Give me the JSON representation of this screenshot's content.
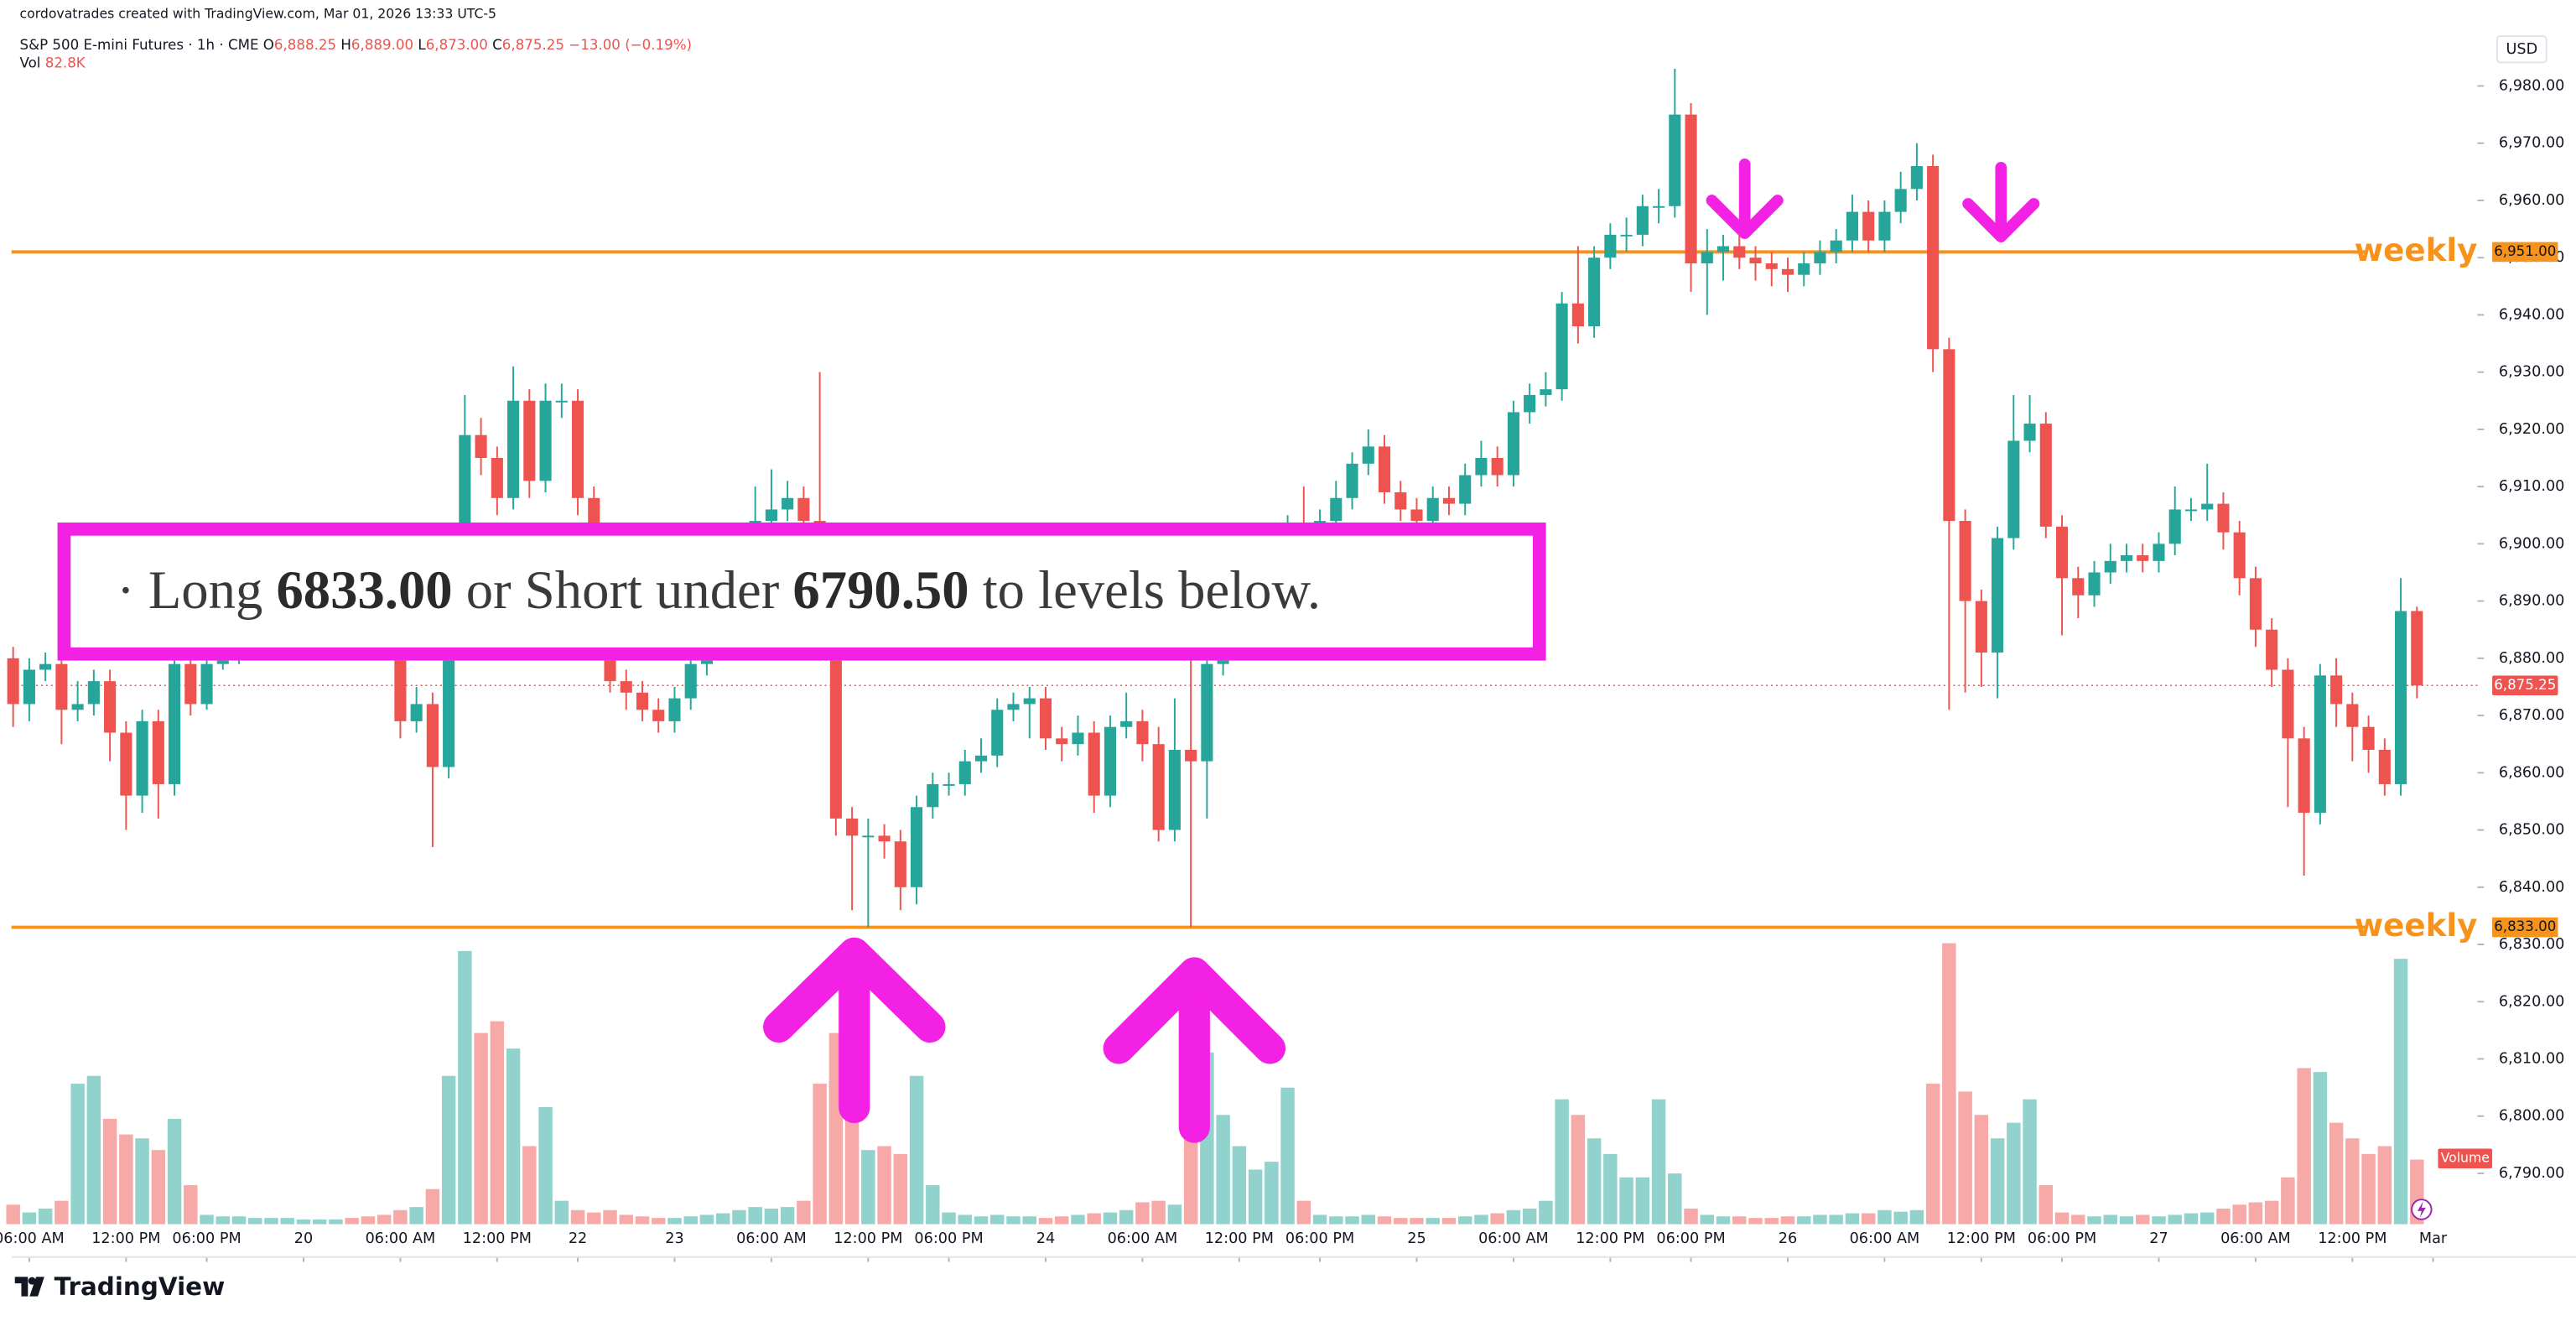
{
  "header": {
    "credit": "cordovatrades created with TradingView.com, Mar 01, 2026 13:33 UTC-5",
    "symbol": "S&P 500 E-mini Futures · 1h · CME",
    "ohlc": [
      {
        "key": "O",
        "value": "6,888.25"
      },
      {
        "key": "H",
        "value": "6,889.00"
      },
      {
        "key": "L",
        "value": "6,873.00"
      },
      {
        "key": "C",
        "value": "6,875.25"
      }
    ],
    "change": "−13.00 (−0.19%)",
    "vol_key": "Vol",
    "vol_value": "82.8K",
    "currency": "USD"
  },
  "annotation": {
    "bullet": "·",
    "long": "Long",
    "long_level": "6833.00",
    "middle": "or Short under",
    "short_level": "6790.50",
    "tail": "to levels below."
  },
  "footer": {
    "brand": "TradingView"
  },
  "chart_data": {
    "type": "candlestick",
    "up_color": "#26a69a",
    "down_color": "#ef5350",
    "volume_up_color": "#92d2cc",
    "volume_down_color": "#f7a9a8",
    "level_color": "#f7931a",
    "ylim": [
      6781,
      6991
    ],
    "yticks": [
      {
        "value": 6790,
        "label": "6,790.00"
      },
      {
        "value": 6800,
        "label": "6,800.00"
      },
      {
        "value": 6810,
        "label": "6,810.00"
      },
      {
        "value": 6820,
        "label": "6,820.00"
      },
      {
        "value": 6830,
        "label": "6,830.00"
      },
      {
        "value": 6840,
        "label": "6,840.00"
      },
      {
        "value": 6850,
        "label": "6,850.00"
      },
      {
        "value": 6860,
        "label": "6,860.00"
      },
      {
        "value": 6870,
        "label": "6,870.00"
      },
      {
        "value": 6880,
        "label": "6,880.00"
      },
      {
        "value": 6890,
        "label": "6,890.00"
      },
      {
        "value": 6900,
        "label": "6,900.00"
      },
      {
        "value": 6910,
        "label": "6,910.00"
      },
      {
        "value": 6920,
        "label": "6,920.00"
      },
      {
        "value": 6930,
        "label": "6,930.00"
      },
      {
        "value": 6940,
        "label": "6,940.00"
      },
      {
        "value": 6950,
        "label": "6,950.00"
      },
      {
        "value": 6960,
        "label": "6,960.00"
      },
      {
        "value": 6970,
        "label": "6,970.00"
      },
      {
        "value": 6980,
        "label": "6,980.00"
      }
    ],
    "xticks": [
      {
        "value": 1,
        "label": "06:00 AM"
      },
      {
        "value": 7,
        "label": "12:00 PM"
      },
      {
        "value": 12,
        "label": "06:00 PM"
      },
      {
        "value": 18,
        "label": "20"
      },
      {
        "value": 24,
        "label": "06:00 AM"
      },
      {
        "value": 30,
        "label": "12:00 PM"
      },
      {
        "value": 35,
        "label": "22"
      },
      {
        "value": 41,
        "label": "23"
      },
      {
        "value": 47,
        "label": "06:00 AM"
      },
      {
        "value": 53,
        "label": "12:00 PM"
      },
      {
        "value": 58,
        "label": "06:00 PM"
      },
      {
        "value": 64,
        "label": "24"
      },
      {
        "value": 70,
        "label": "06:00 AM"
      },
      {
        "value": 76,
        "label": "12:00 PM"
      },
      {
        "value": 81,
        "label": "06:00 PM"
      },
      {
        "value": 87,
        "label": "25"
      },
      {
        "value": 93,
        "label": "06:00 AM"
      },
      {
        "value": 99,
        "label": "12:00 PM"
      },
      {
        "value": 104,
        "label": "06:00 PM"
      },
      {
        "value": 110,
        "label": "26"
      },
      {
        "value": 116,
        "label": "06:00 AM"
      },
      {
        "value": 122,
        "label": "12:00 PM"
      },
      {
        "value": 127,
        "label": "06:00 PM"
      },
      {
        "value": 133,
        "label": "27"
      },
      {
        "value": 139,
        "label": "06:00 AM"
      },
      {
        "value": 145,
        "label": "12:00 PM"
      },
      {
        "value": 150,
        "label": "Mar"
      }
    ],
    "volume_ylim": [
      0,
      400
    ],
    "volume_label": "Volume",
    "last_price_label": "6,875.25",
    "levels": [
      {
        "name": "weekly",
        "value": 6951,
        "label": "6,951.00"
      },
      {
        "name": "weekly",
        "value": 6833,
        "label": "6,833.00"
      }
    ],
    "open": [
      6880,
      6872,
      6878,
      6879,
      6871,
      6872,
      6876,
      6867,
      6856,
      6869,
      6858,
      6879,
      6872,
      6879,
      6880,
      6883,
      6886,
      6890,
      6893,
      6895,
      6897,
      6898,
      6895,
      6892,
      6888,
      6869,
      6872,
      6861,
      6895,
      6919,
      6915,
      6908,
      6925,
      6911,
      6925,
      6925,
      6908,
      6890,
      6876,
      6874,
      6871,
      6869,
      6873,
      6879,
      6885,
      6892,
      6898,
      6904,
      6906,
      6908,
      6904,
      6895,
      6852,
      6849,
      6849,
      6848,
      6840,
      6854,
      6858,
      6858,
      6862,
      6863,
      6871,
      6872,
      6873,
      6866,
      6865,
      6867,
      6856,
      6868,
      6869,
      6865,
      6850,
      6864,
      6862,
      6879,
      6885,
      6890,
      6895,
      6900,
      6903,
      6902,
      6904,
      6908,
      6914,
      6917,
      6909,
      6906,
      6904,
      6908,
      6907,
      6912,
      6915,
      6912,
      6923,
      6926,
      6927,
      6942,
      6938,
      6950,
      6954,
      6954,
      6959,
      6959,
      6975,
      6949,
      6951,
      6952,
      6950,
      6949,
      6948,
      6947,
      6949,
      6951,
      6953,
      6958,
      6953,
      6958,
      6962,
      6966,
      6934,
      6904,
      6890,
      6881,
      6901,
      6918,
      6921,
      6903,
      6894,
      6891,
      6895,
      6897,
      6898,
      6897,
      6900,
      6906,
      6906,
      6907,
      6902,
      6894,
      6885,
      6878,
      6866,
      6853,
      6877,
      6872,
      6868,
      6864,
      6858,
      6888.25
    ],
    "high": [
      6882,
      6880,
      6881,
      6881,
      6876,
      6878,
      6878,
      6869,
      6871,
      6871,
      6881,
      6881,
      6881,
      6882,
      6885,
      6888,
      6892,
      6895,
      6897,
      6899,
      6900,
      6900,
      6897,
      6894,
      6890,
      6875,
      6874,
      6897,
      6926,
      6922,
      6917,
      6931,
      6927,
      6928,
      6928,
      6927,
      6910,
      6892,
      6878,
      6876,
      6873,
      6875,
      6881,
      6887,
      6894,
      6900,
      6910,
      6913,
      6911,
      6910,
      6930,
      6897,
      6854,
      6852,
      6851,
      6850,
      6856,
      6860,
      6860,
      6864,
      6866,
      6873,
      6874,
      6875,
      6875,
      6868,
      6870,
      6869,
      6870,
      6874,
      6871,
      6868,
      6873,
      6880,
      6884,
      6887,
      6892,
      6897,
      6902,
      6905,
      6910,
      6906,
      6911,
      6916,
      6920,
      6919,
      6911,
      6908,
      6910,
      6910,
      6914,
      6918,
      6917,
      6925,
      6928,
      6930,
      6944,
      6952,
      6952,
      6956,
      6957,
      6961,
      6962,
      6983,
      6977,
      6955,
      6954,
      6954,
      6952,
      6951,
      6950,
      6951,
      6953,
      6955,
      6961,
      6960,
      6960,
      6965,
      6970,
      6968,
      6936,
      6906,
      6892,
      6903,
      6926,
      6926,
      6923,
      6905,
      6896,
      6897,
      6900,
      6900,
      6900,
      6902,
      6910,
      6908,
      6914,
      6909,
      6904,
      6896,
      6887,
      6880,
      6868,
      6879,
      6880,
      6874,
      6870,
      6866,
      6894,
      6889
    ],
    "low": [
      6868,
      6869,
      6876,
      6865,
      6869,
      6870,
      6862,
      6850,
      6853,
      6852,
      6856,
      6870,
      6871,
      6878,
      6879,
      6881,
      6884,
      6888,
      6891,
      6893,
      6895,
      6893,
      6890,
      6885,
      6866,
      6867,
      6847,
      6859,
      6893,
      6912,
      6905,
      6906,
      6908,
      6909,
      6922,
      6905,
      6887,
      6874,
      6871,
      6869,
      6867,
      6867,
      6871,
      6877,
      6883,
      6890,
      6896,
      6902,
      6904,
      6901,
      6892,
      6849,
      6836,
      6833,
      6845,
      6836,
      6837,
      6852,
      6856,
      6856,
      6860,
      6861,
      6869,
      6866,
      6864,
      6862,
      6863,
      6853,
      6854,
      6866,
      6862,
      6848,
      6848,
      6833,
      6852,
      6877,
      6883,
      6888,
      6893,
      6898,
      6900,
      6900,
      6902,
      6906,
      6912,
      6907,
      6904,
      6901,
      6902,
      6905,
      6905,
      6910,
      6910,
      6910,
      6921,
      6924,
      6925,
      6935,
      6936,
      6948,
      6951,
      6952,
      6956,
      6957,
      6944,
      6940,
      6946,
      6948,
      6946,
      6945,
      6944,
      6945,
      6947,
      6949,
      6951,
      6951,
      6951,
      6956,
      6960,
      6930,
      6871,
      6874,
      6875,
      6873,
      6899,
      6916,
      6901,
      6884,
      6887,
      6889,
      6893,
      6895,
      6895,
      6895,
      6898,
      6904,
      6904,
      6899,
      6891,
      6882,
      6875,
      6854,
      6842,
      6851,
      6868,
      6862,
      6860,
      6856,
      6856,
      6873
    ],
    "close": [
      6872,
      6878,
      6879,
      6871,
      6872,
      6876,
      6867,
      6856,
      6869,
      6858,
      6879,
      6872,
      6879,
      6880,
      6883,
      6886,
      6890,
      6893,
      6895,
      6897,
      6898,
      6895,
      6892,
      6888,
      6869,
      6872,
      6861,
      6895,
      6919,
      6915,
      6908,
      6925,
      6911,
      6925,
      6925,
      6908,
      6890,
      6876,
      6874,
      6871,
      6869,
      6873,
      6879,
      6885,
      6892,
      6898,
      6904,
      6906,
      6908,
      6904,
      6895,
      6852,
      6849,
      6849,
      6848,
      6840,
      6854,
      6858,
      6858,
      6862,
      6863,
      6871,
      6872,
      6873,
      6866,
      6865,
      6867,
      6856,
      6868,
      6869,
      6865,
      6850,
      6864,
      6862,
      6879,
      6885,
      6890,
      6895,
      6900,
      6903,
      6902,
      6904,
      6908,
      6914,
      6917,
      6909,
      6906,
      6904,
      6908,
      6907,
      6912,
      6915,
      6912,
      6923,
      6926,
      6927,
      6942,
      6938,
      6950,
      6954,
      6954,
      6959,
      6959,
      6975,
      6949,
      6951,
      6952,
      6950,
      6949,
      6948,
      6947,
      6949,
      6951,
      6953,
      6958,
      6953,
      6958,
      6962,
      6966,
      6934,
      6904,
      6890,
      6881,
      6901,
      6918,
      6921,
      6903,
      6894,
      6891,
      6895,
      6897,
      6898,
      6897,
      6900,
      6906,
      6906,
      6907,
      6902,
      6894,
      6885,
      6878,
      6866,
      6853,
      6877,
      6872,
      6868,
      6864,
      6858,
      6888.25,
      6875.25
    ],
    "volume": [
      25,
      15,
      20,
      30,
      180,
      190,
      135,
      115,
      110,
      95,
      135,
      50,
      12,
      10,
      10,
      8,
      8,
      8,
      6,
      6,
      6,
      8,
      10,
      12,
      18,
      22,
      45,
      190,
      350,
      245,
      260,
      225,
      100,
      150,
      30,
      18,
      15,
      18,
      12,
      10,
      8,
      8,
      10,
      12,
      14,
      18,
      22,
      20,
      22,
      30,
      180,
      245,
      160,
      95,
      100,
      90,
      190,
      50,
      15,
      12,
      10,
      12,
      10,
      10,
      8,
      10,
      12,
      14,
      15,
      18,
      28,
      30,
      25,
      110,
      220,
      140,
      100,
      70,
      80,
      175,
      30,
      12,
      10,
      10,
      12,
      10,
      8,
      8,
      8,
      8,
      10,
      12,
      14,
      18,
      20,
      30,
      160,
      140,
      110,
      90,
      60,
      60,
      160,
      65,
      20,
      12,
      10,
      10,
      8,
      8,
      10,
      10,
      12,
      12,
      14,
      14,
      18,
      16,
      18,
      180,
      360,
      170,
      140,
      110,
      130,
      160,
      50,
      15,
      12,
      10,
      12,
      10,
      12,
      10,
      12,
      14,
      15,
      20,
      25,
      28,
      30,
      60,
      200,
      195,
      130,
      110,
      90,
      100,
      340,
      82.8
    ]
  }
}
